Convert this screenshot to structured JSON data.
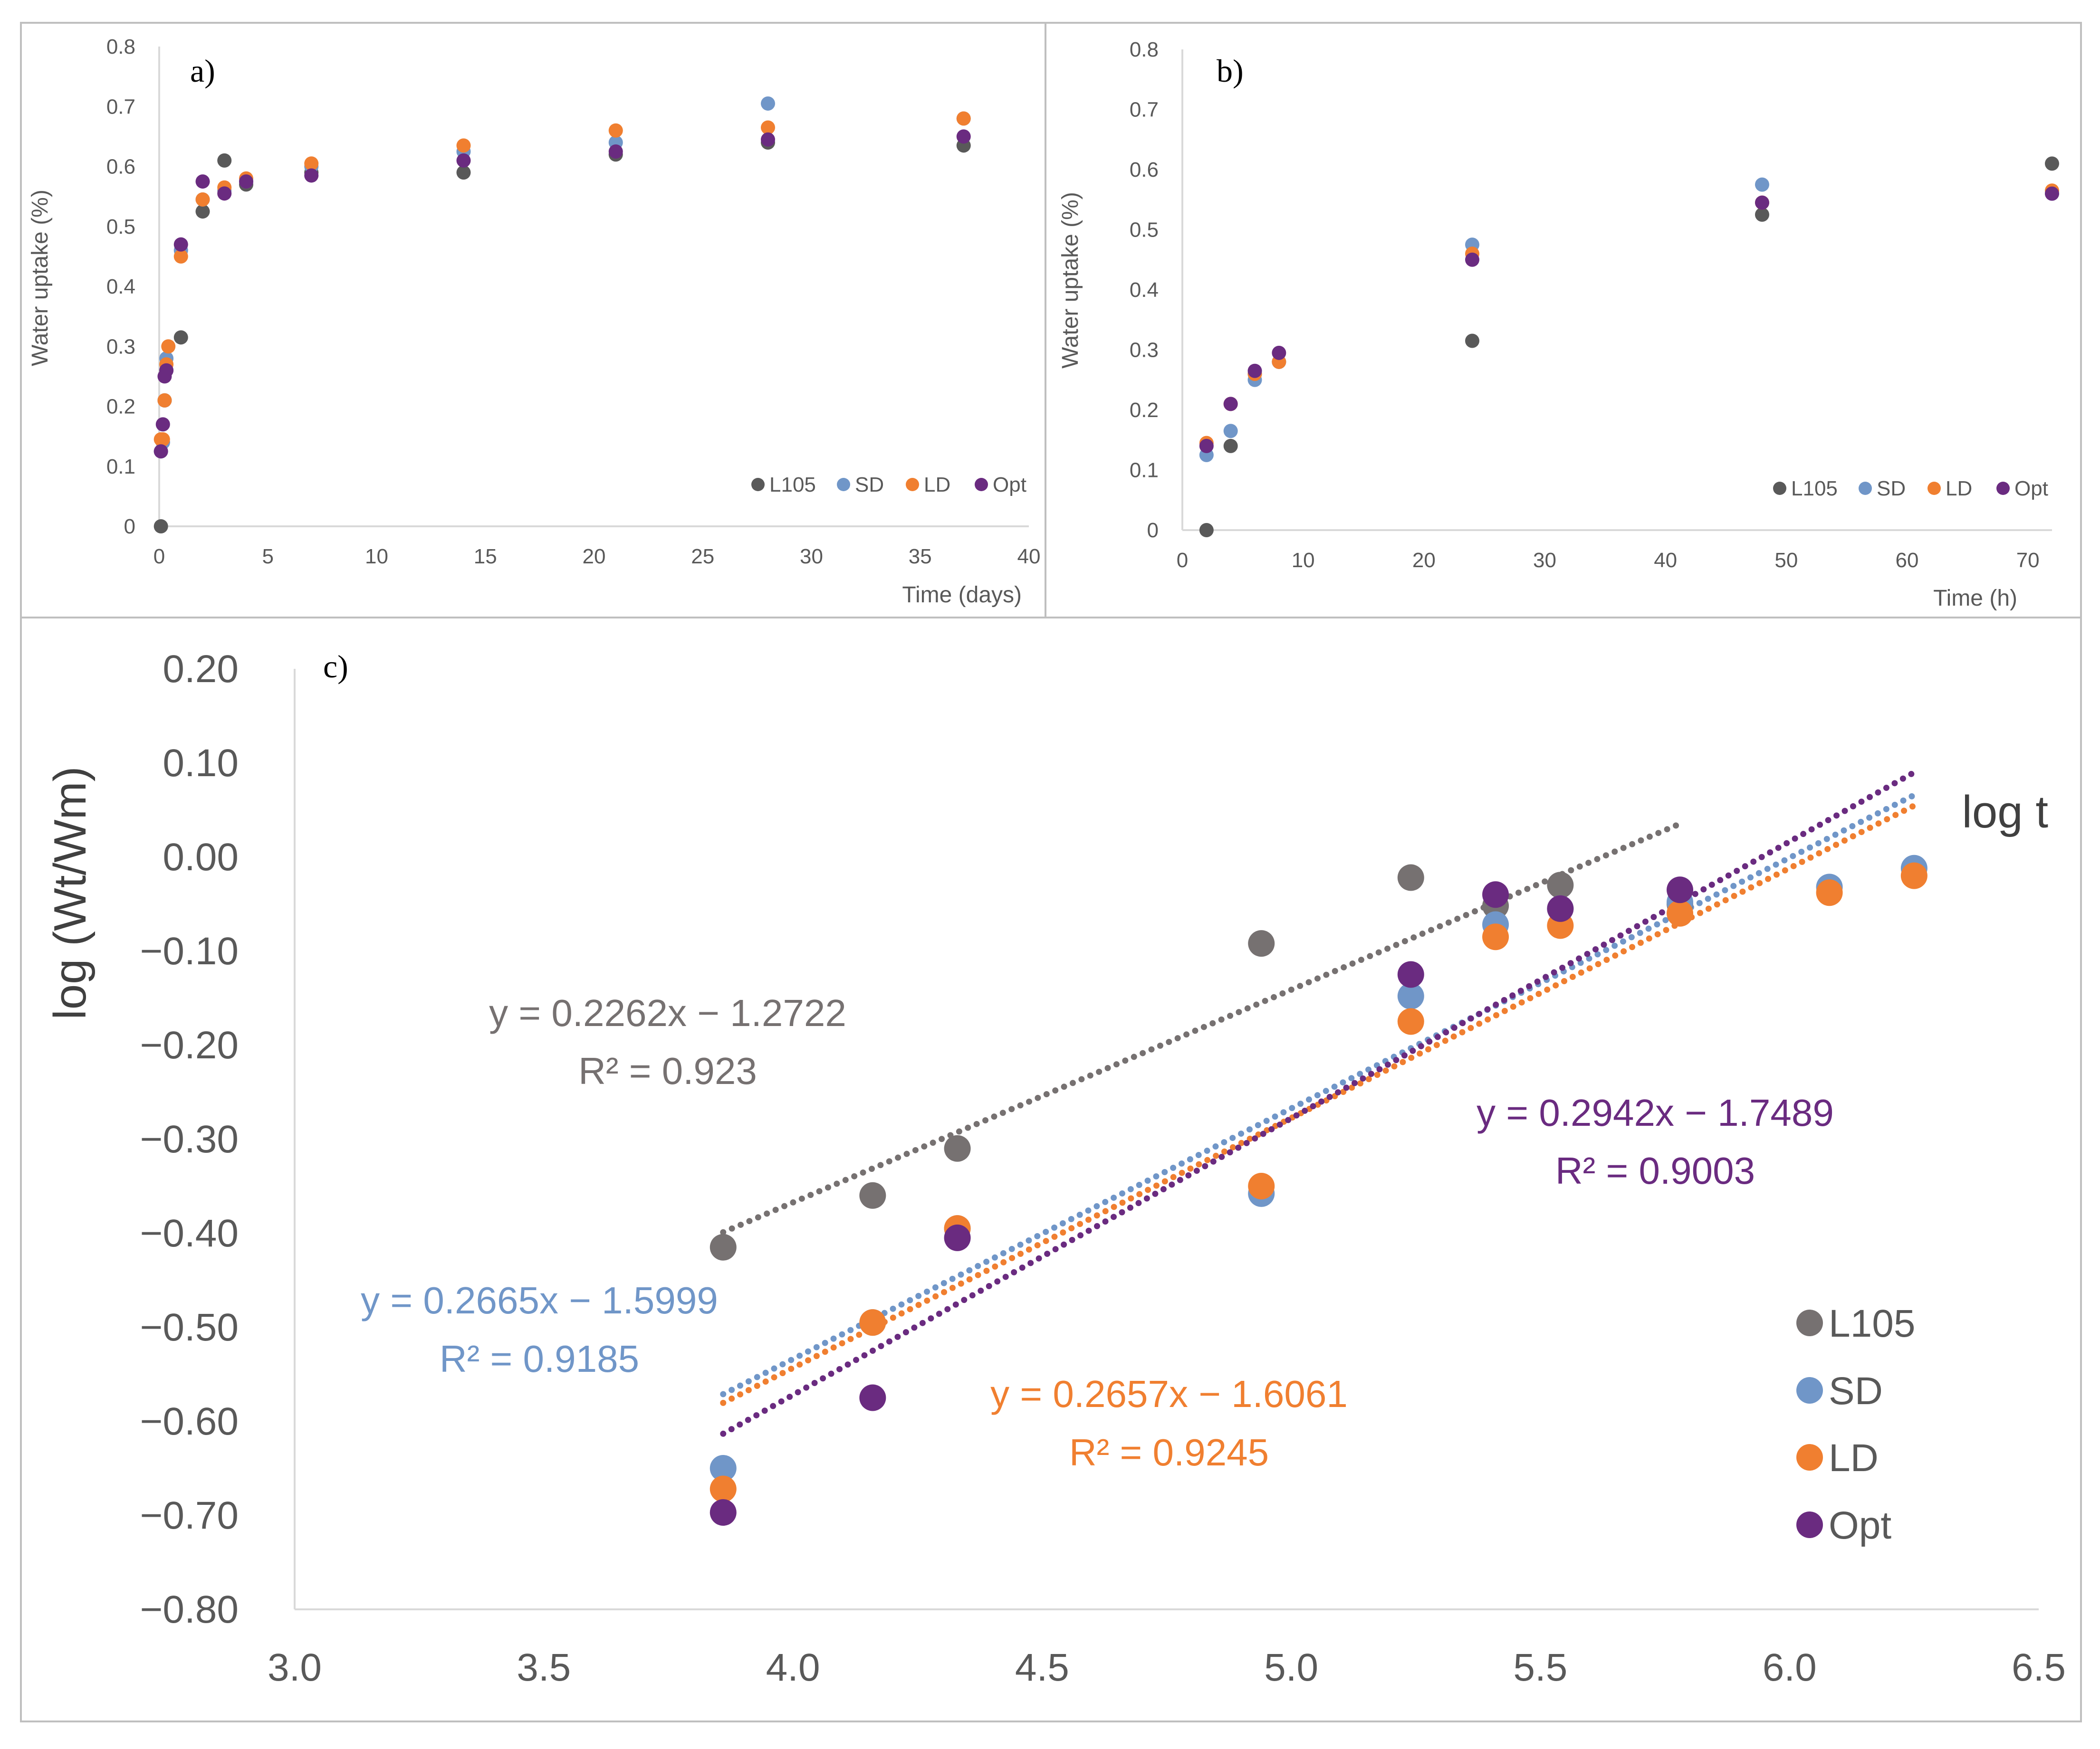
{
  "chart_data": [
    {
      "id": "a",
      "type": "scatter",
      "panel_label": "a)",
      "title": "",
      "xlabel": "Time (days)",
      "ylabel": "Water uptake (%)",
      "xlim": [
        0,
        40
      ],
      "ylim": [
        0,
        0.8
      ],
      "x_ticks": [
        "0",
        "5",
        "10",
        "15",
        "20",
        "25",
        "30",
        "35",
        "40"
      ],
      "y_ticks": [
        "0",
        "0.1",
        "0.2",
        "0.3",
        "0.4",
        "0.5",
        "0.6",
        "0.7",
        "0.8"
      ],
      "grid": false,
      "legend": "bottom-right",
      "series": [
        {
          "name": "L105",
          "color": "#595959",
          "points": [
            [
              0.08,
              0.0
            ],
            [
              0.17,
              0.14
            ],
            [
              0.25,
              0.21
            ],
            [
              0.33,
              0.26
            ],
            [
              1,
              0.315
            ],
            [
              2,
              0.525
            ],
            [
              3,
              0.61
            ],
            [
              4,
              0.57
            ],
            [
              7,
              0.59
            ],
            [
              14,
              0.59
            ],
            [
              21,
              0.62
            ],
            [
              28,
              0.64
            ],
            [
              37,
              0.635
            ]
          ]
        },
        {
          "name": "SD",
          "color": "#7096c8",
          "points": [
            [
              0.08,
              0.125
            ],
            [
              0.17,
              0.14
            ],
            [
              0.25,
              0.21
            ],
            [
              0.33,
              0.28
            ],
            [
              1,
              0.46
            ],
            [
              2,
              0.545
            ],
            [
              3,
              0.56
            ],
            [
              4,
              0.575
            ],
            [
              7,
              0.6
            ],
            [
              14,
              0.625
            ],
            [
              21,
              0.64
            ],
            [
              28,
              0.705
            ],
            [
              37,
              0.68
            ]
          ]
        },
        {
          "name": "LD",
          "color": "#f07f30",
          "points": [
            [
              0.08,
              0.145
            ],
            [
              0.17,
              0.145
            ],
            [
              0.25,
              0.21
            ],
            [
              0.33,
              0.27
            ],
            [
              0.42,
              0.3
            ],
            [
              1,
              0.45
            ],
            [
              2,
              0.545
            ],
            [
              3,
              0.565
            ],
            [
              4,
              0.58
            ],
            [
              7,
              0.605
            ],
            [
              14,
              0.635
            ],
            [
              21,
              0.66
            ],
            [
              28,
              0.665
            ],
            [
              37,
              0.68
            ]
          ]
        },
        {
          "name": "Opt",
          "color": "#6a2b80",
          "points": [
            [
              0.08,
              0.125
            ],
            [
              0.17,
              0.17
            ],
            [
              0.25,
              0.25
            ],
            [
              0.33,
              0.26
            ],
            [
              1,
              0.47
            ],
            [
              2,
              0.575
            ],
            [
              3,
              0.555
            ],
            [
              4,
              0.575
            ],
            [
              7,
              0.585
            ],
            [
              14,
              0.61
            ],
            [
              21,
              0.625
            ],
            [
              28,
              0.645
            ],
            [
              37,
              0.65
            ]
          ]
        }
      ]
    },
    {
      "id": "b",
      "type": "scatter",
      "panel_label": "b)",
      "title": "",
      "xlabel": "Time (h)",
      "ylabel": "Water uptake (%)",
      "xlim": [
        0,
        72
      ],
      "ylim": [
        0,
        0.8
      ],
      "x_ticks": [
        "0",
        "10",
        "20",
        "30",
        "40",
        "50",
        "60",
        "70"
      ],
      "y_ticks": [
        "0",
        "0.1",
        "0.2",
        "0.3",
        "0.4",
        "0.5",
        "0.6",
        "0.7",
        "0.8"
      ],
      "grid": false,
      "legend": "bottom-right",
      "series": [
        {
          "name": "L105",
          "color": "#595959",
          "points": [
            [
              2,
              0.0
            ],
            [
              4,
              0.14
            ],
            [
              6,
              0.26
            ],
            [
              8,
              0.28
            ],
            [
              24,
              0.315
            ],
            [
              48,
              0.525
            ],
            [
              72,
              0.61
            ]
          ]
        },
        {
          "name": "SD",
          "color": "#7096c8",
          "points": [
            [
              2,
              0.125
            ],
            [
              4,
              0.165
            ],
            [
              6,
              0.25
            ],
            [
              8,
              0.28
            ],
            [
              24,
              0.475
            ],
            [
              48,
              0.575
            ],
            [
              72,
              0.56
            ]
          ]
        },
        {
          "name": "LD",
          "color": "#f07f30",
          "points": [
            [
              2,
              0.145
            ],
            [
              4,
              0.21
            ],
            [
              6,
              0.26
            ],
            [
              8,
              0.28
            ],
            [
              24,
              0.46
            ],
            [
              48,
              0.545
            ],
            [
              72,
              0.565
            ]
          ]
        },
        {
          "name": "Opt",
          "color": "#6a2b80",
          "points": [
            [
              2,
              0.14
            ],
            [
              4,
              0.21
            ],
            [
              6,
              0.265
            ],
            [
              8,
              0.295
            ],
            [
              24,
              0.45
            ],
            [
              48,
              0.545
            ],
            [
              72,
              0.56
            ]
          ]
        }
      ]
    },
    {
      "id": "c",
      "type": "scatter",
      "panel_label": "c)",
      "title": "",
      "xlabel": "log t",
      "ylabel": "log (Wt/Wm)",
      "xlim": [
        3.0,
        6.5
      ],
      "ylim": [
        -0.8,
        0.2
      ],
      "x_ticks": [
        "3.0",
        "3.5",
        "4.0",
        "4.5",
        "5.0",
        "5.5",
        "6.0",
        "6.5"
      ],
      "y_ticks": [
        "−0.80",
        "−0.70",
        "−0.60",
        "−0.50",
        "−0.40",
        "−0.30",
        "−0.20",
        "−0.10",
        "0.00",
        "0.10",
        "0.20"
      ],
      "grid": false,
      "legend": "bottom-right",
      "series": [
        {
          "name": "L105",
          "color": "#767171",
          "points": [
            [
              3.86,
              -0.415
            ],
            [
              4.16,
              -0.36
            ],
            [
              4.33,
              -0.31
            ],
            [
              4.94,
              -0.092
            ],
            [
              5.24,
              -0.022
            ],
            [
              5.41,
              -0.052
            ],
            [
              5.54,
              -0.03
            ],
            [
              5.78,
              -0.05
            ]
          ],
          "trendline": {
            "x": [
              3.86,
              5.78
            ],
            "equation": "y = 0.2262x − 1.2722",
            "r2": "R² = 0.923",
            "slope": 0.2262,
            "intercept": -1.2722
          }
        },
        {
          "name": "SD",
          "color": "#7096c8",
          "points": [
            [
              3.86,
              -0.65
            ],
            [
              4.16,
              -0.495
            ],
            [
              4.33,
              -0.395
            ],
            [
              4.94,
              -0.358
            ],
            [
              5.24,
              -0.148
            ],
            [
              5.41,
              -0.072
            ],
            [
              5.54,
              -0.055
            ],
            [
              5.78,
              -0.048
            ],
            [
              6.08,
              -0.032
            ],
            [
              6.25,
              -0.012
            ]
          ],
          "trendline": {
            "x": [
              3.86,
              6.25
            ],
            "equation": "y = 0.2665x − 1.5999",
            "r2": "R² = 0.9185",
            "slope": 0.2665,
            "intercept": -1.5999
          }
        },
        {
          "name": "LD",
          "color": "#f07f30",
          "points": [
            [
              3.86,
              -0.672
            ],
            [
              4.16,
              -0.495
            ],
            [
              4.33,
              -0.395
            ],
            [
              4.94,
              -0.35
            ],
            [
              5.24,
              -0.175
            ],
            [
              5.41,
              -0.085
            ],
            [
              5.54,
              -0.073
            ],
            [
              5.78,
              -0.06
            ],
            [
              6.08,
              -0.038
            ],
            [
              6.25,
              -0.02
            ]
          ],
          "trendline": {
            "x": [
              3.86,
              6.25
            ],
            "equation": "y = 0.2657x − 1.6061",
            "r2": "R² = 0.9245",
            "slope": 0.2657,
            "intercept": -1.6061
          }
        },
        {
          "name": "Opt",
          "color": "#6a2b80",
          "points": [
            [
              3.86,
              -0.697
            ],
            [
              4.16,
              -0.575
            ],
            [
              4.33,
              -0.405
            ],
            [
              5.24,
              -0.125
            ],
            [
              5.41,
              -0.04
            ],
            [
              5.54,
              -0.055
            ],
            [
              5.78,
              -0.035
            ]
          ],
          "trendline": {
            "x": [
              3.86,
              6.25
            ],
            "equation": "y = 0.2942x − 1.7489",
            "r2": "R² = 0.9003",
            "slope": 0.2942,
            "intercept": -1.7489
          }
        }
      ]
    }
  ]
}
